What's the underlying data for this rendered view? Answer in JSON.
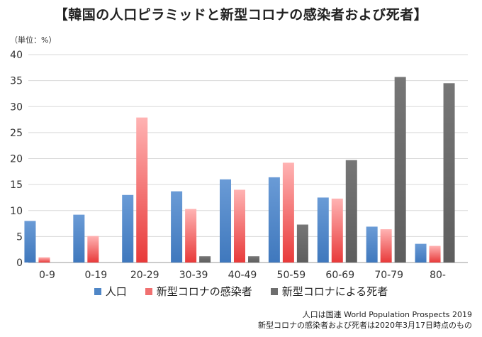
{
  "chart_data": {
    "type": "bar",
    "title": "【韓国の人口ピラミッドと新型コロナの感染者および死者】",
    "unit_label": "（単位：%）",
    "categories": [
      "0-9",
      "0-19",
      "20-29",
      "30-39",
      "40-49",
      "50-59",
      "60-69",
      "70-79",
      "80-"
    ],
    "ylim": [
      0,
      40
    ],
    "yticks": [
      0,
      5,
      10,
      15,
      20,
      25,
      30,
      35,
      40
    ],
    "grid": true,
    "legend_position": "bottom",
    "series": [
      {
        "name": "人口",
        "color": "#4f86c6",
        "values": [
          8.0,
          9.2,
          13.0,
          13.7,
          16.0,
          16.4,
          12.5,
          6.9,
          3.6
        ]
      },
      {
        "name": "新型コロナの感染者",
        "color": "#f07070",
        "values": [
          1.0,
          5.1,
          27.9,
          10.3,
          14.0,
          19.2,
          12.3,
          6.4,
          3.2
        ]
      },
      {
        "name": "新型コロナによる死者",
        "color": "#6e6e6e",
        "values": [
          0,
          0,
          0,
          1.2,
          1.2,
          7.3,
          19.7,
          35.7,
          34.5
        ]
      }
    ]
  },
  "source": {
    "line1": "人口は国連 World Population Prospects 2019",
    "line2": "新型コロナの感染者および死者は2020年3月17日時点のもの"
  }
}
